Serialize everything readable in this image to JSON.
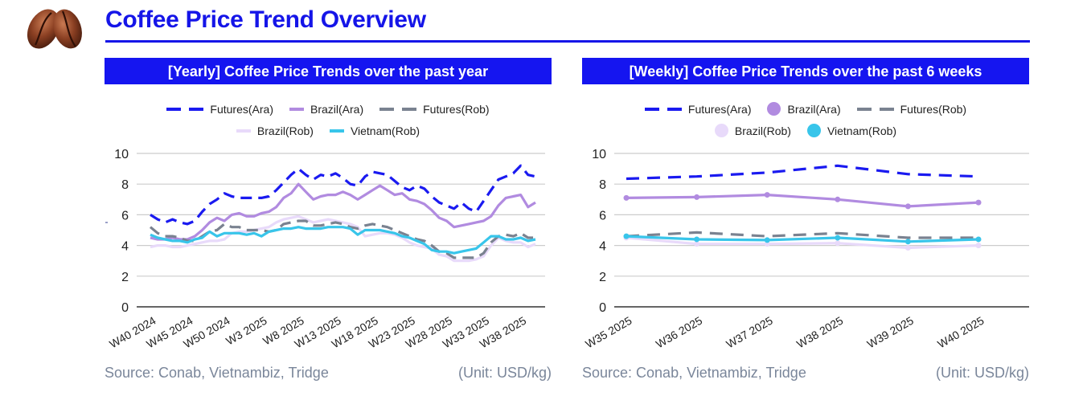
{
  "header": {
    "title": "Coffee Price Trend Overview",
    "logo": "coffee-beans-image"
  },
  "colors": {
    "brand": "#1515E8",
    "futures_ara": "#1A1AF0",
    "brazil_ara": "#B18BE0",
    "futures_rob": "#7A8290",
    "brazil_rob": "#E8DAFA",
    "vietnam_rob": "#38C5EA"
  },
  "panels": [
    {
      "header": "[Yearly] Coffee Price Trends over the past year",
      "source": "Source: Conab, Vietnambiz, Tridge",
      "unit": "(Unit: USD/kg)"
    },
    {
      "header": "[Weekly] Coffee Price Trends over the past 6 weeks",
      "source": "Source: Conab, Vietnambiz, Tridge",
      "unit": "(Unit: USD/kg)"
    }
  ],
  "chart_data": [
    {
      "type": "line",
      "title": "[Yearly] Coffee Price Trends over the past year",
      "xlabel": "",
      "ylabel": "",
      "ylim": [
        0,
        10
      ],
      "yticks": [
        0,
        2,
        4,
        6,
        8,
        10
      ],
      "grid": true,
      "legend_position": "top-center",
      "x": [
        "W40 2024",
        "W41 2024",
        "W42 2024",
        "W43 2024",
        "W44 2024",
        "W45 2024",
        "W46 2024",
        "W47 2024",
        "W48 2024",
        "W49 2024",
        "W50 2024",
        "W51 2024",
        "W52 2024",
        "W1 2025",
        "W2 2025",
        "W3 2025",
        "W4 2025",
        "W5 2025",
        "W6 2025",
        "W7 2025",
        "W8 2025",
        "W9 2025",
        "W10 2025",
        "W11 2025",
        "W12 2025",
        "W13 2025",
        "W14 2025",
        "W15 2025",
        "W16 2025",
        "W17 2025",
        "W18 2025",
        "W19 2025",
        "W20 2025",
        "W21 2025",
        "W22 2025",
        "W23 2025",
        "W24 2025",
        "W25 2025",
        "W26 2025",
        "W27 2025",
        "W28 2025",
        "W29 2025",
        "W30 2025",
        "W31 2025",
        "W32 2025",
        "W33 2025",
        "W34 2025",
        "W35 2025",
        "W36 2025",
        "W37 2025",
        "W38 2025",
        "W39 2025",
        "W40 2025"
      ],
      "xtick_labels": [
        "W40 2024",
        "W45 2024",
        "W50 2024",
        "W3 2025",
        "W8 2025",
        "W13 2025",
        "W18 2025",
        "W23 2025",
        "W28 2025",
        "W33 2025",
        "W38 2025"
      ],
      "series": [
        {
          "name": "Futures(Ara)",
          "style": "dashed",
          "color": "#1A1AF0",
          "values": [
            6.0,
            5.7,
            5.5,
            5.7,
            5.5,
            5.4,
            5.6,
            6.2,
            6.7,
            7.0,
            7.4,
            7.2,
            7.1,
            7.1,
            7.1,
            7.1,
            7.2,
            7.6,
            8.1,
            8.6,
            9.0,
            8.6,
            8.3,
            8.6,
            8.5,
            8.7,
            8.4,
            8.0,
            7.9,
            8.5,
            8.8,
            8.7,
            8.6,
            8.2,
            7.8,
            7.6,
            7.9,
            7.7,
            7.2,
            6.8,
            6.6,
            6.4,
            6.8,
            6.4,
            6.2,
            6.9,
            7.6,
            8.3,
            8.5,
            8.7,
            9.2,
            8.6,
            8.5
          ]
        },
        {
          "name": "Brazil(Ara)",
          "style": "solid",
          "color": "#B18BE0",
          "values": [
            4.5,
            4.4,
            4.4,
            4.5,
            4.4,
            4.4,
            4.6,
            5.0,
            5.5,
            5.8,
            5.6,
            6.0,
            6.1,
            5.9,
            5.9,
            6.1,
            6.2,
            6.5,
            7.1,
            7.4,
            8.0,
            7.5,
            7.0,
            7.2,
            7.3,
            7.3,
            7.5,
            7.3,
            7.0,
            7.3,
            7.6,
            7.9,
            7.6,
            7.3,
            7.4,
            7.0,
            6.9,
            6.7,
            6.3,
            5.8,
            5.6,
            5.2,
            5.3,
            5.4,
            5.5,
            5.6,
            5.9,
            6.6,
            7.1,
            7.2,
            7.3,
            6.5,
            6.8
          ]
        },
        {
          "name": "Futures(Rob)",
          "style": "dashed",
          "color": "#7A8290",
          "values": [
            5.2,
            4.8,
            4.6,
            4.6,
            4.5,
            4.3,
            4.3,
            4.6,
            4.9,
            5.0,
            5.4,
            5.2,
            5.2,
            5.0,
            5.0,
            5.0,
            4.9,
            5.0,
            5.4,
            5.5,
            5.6,
            5.6,
            5.3,
            5.3,
            5.4,
            5.5,
            5.4,
            5.2,
            5.1,
            5.3,
            5.4,
            5.3,
            5.2,
            5.0,
            4.8,
            4.6,
            4.4,
            4.3,
            4.0,
            3.6,
            3.5,
            3.2,
            3.2,
            3.2,
            3.2,
            3.5,
            4.2,
            4.6,
            4.7,
            4.6,
            4.8,
            4.5,
            4.5
          ]
        },
        {
          "name": "Brazil(Rob)",
          "style": "solid",
          "color": "#E8DAFA",
          "values": [
            3.9,
            4.0,
            4.0,
            3.9,
            3.9,
            4.0,
            4.1,
            4.2,
            4.3,
            4.3,
            4.4,
            4.8,
            4.9,
            4.9,
            5.0,
            5.1,
            5.2,
            5.5,
            5.7,
            5.8,
            5.9,
            5.7,
            5.5,
            5.6,
            5.7,
            5.6,
            5.5,
            5.4,
            5.2,
            4.6,
            4.7,
            4.8,
            4.8,
            4.7,
            4.5,
            4.2,
            4.0,
            3.9,
            3.8,
            3.4,
            3.3,
            3.0,
            3.0,
            3.0,
            3.1,
            3.3,
            4.0,
            4.5,
            4.3,
            4.2,
            4.2,
            3.9,
            4.1
          ]
        },
        {
          "name": "Vietnam(Rob)",
          "style": "solid",
          "color": "#38C5EA",
          "values": [
            4.7,
            4.5,
            4.4,
            4.3,
            4.3,
            4.2,
            4.4,
            4.5,
            4.9,
            4.6,
            4.8,
            4.8,
            4.8,
            4.7,
            4.8,
            4.6,
            4.9,
            5.0,
            5.1,
            5.1,
            5.2,
            5.1,
            5.1,
            5.1,
            5.2,
            5.2,
            5.2,
            5.1,
            4.7,
            5.0,
            5.0,
            5.0,
            4.9,
            4.8,
            4.6,
            4.5,
            4.3,
            4.1,
            3.7,
            3.6,
            3.6,
            3.5,
            3.6,
            3.7,
            3.8,
            4.2,
            4.6,
            4.6,
            4.4,
            4.4,
            4.5,
            4.3,
            4.4
          ]
        }
      ]
    },
    {
      "type": "line",
      "title": "[Weekly] Coffee Price Trends over the past 6 weeks",
      "xlabel": "",
      "ylabel": "",
      "ylim": [
        0,
        10
      ],
      "yticks": [
        0,
        2,
        4,
        6,
        8,
        10
      ],
      "grid": true,
      "legend_position": "top-center",
      "x": [
        "W35 2025",
        "W36 2025",
        "W37 2025",
        "W38 2025",
        "W39 2025",
        "W40 2025"
      ],
      "xtick_labels": [
        "W35 2025",
        "W36 2025",
        "W37 2025",
        "W38 2025",
        "W39 2025",
        "W40 2025"
      ],
      "series": [
        {
          "name": "Futures(Ara)",
          "style": "dashed",
          "markers": false,
          "color": "#1A1AF0",
          "values": [
            8.35,
            8.5,
            8.75,
            9.2,
            8.65,
            8.5
          ]
        },
        {
          "name": "Brazil(Ara)",
          "style": "solid",
          "markers": true,
          "color": "#B18BE0",
          "values": [
            7.1,
            7.15,
            7.3,
            7.0,
            6.55,
            6.8
          ]
        },
        {
          "name": "Futures(Rob)",
          "style": "dashed",
          "markers": false,
          "color": "#7A8290",
          "values": [
            4.6,
            4.85,
            4.6,
            4.8,
            4.5,
            4.5
          ]
        },
        {
          "name": "Brazil(Rob)",
          "style": "solid",
          "markers": true,
          "color": "#E8DAFA",
          "values": [
            4.5,
            4.1,
            4.1,
            4.15,
            3.85,
            4.0
          ]
        },
        {
          "name": "Vietnam(Rob)",
          "style": "solid",
          "markers": true,
          "color": "#38C5EA",
          "values": [
            4.6,
            4.4,
            4.35,
            4.5,
            4.25,
            4.4
          ]
        }
      ]
    }
  ]
}
